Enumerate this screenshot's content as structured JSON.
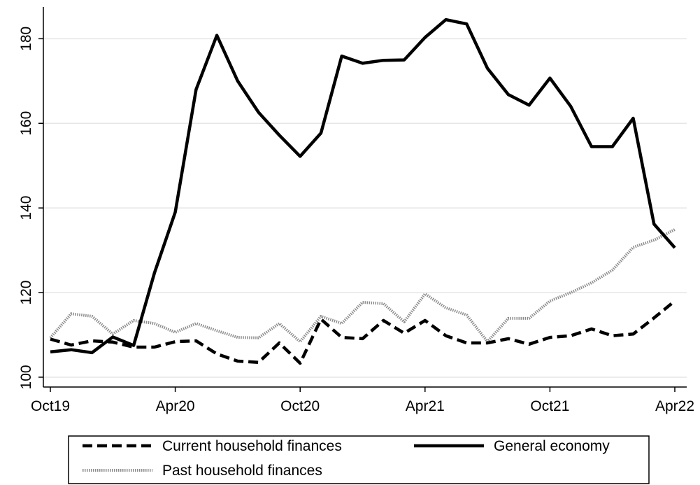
{
  "chart_data": {
    "type": "line",
    "categories": [
      "Oct19",
      null,
      null,
      null,
      null,
      null,
      "Apr20",
      null,
      null,
      null,
      null,
      null,
      "Oct20",
      null,
      null,
      null,
      null,
      null,
      "Apr21",
      null,
      null,
      null,
      null,
      null,
      "Oct21",
      null,
      null,
      null,
      null,
      null,
      "Apr22"
    ],
    "series": [
      {
        "name": "Current household finances",
        "color": "#000000",
        "dash": "dashed",
        "values": [
          109,
          107.6,
          108.6,
          108.3,
          107.1,
          107.1,
          108.4,
          108.6,
          105.5,
          103.8,
          103.5,
          108.1,
          103.3,
          113.7,
          109.4,
          109.1,
          113.4,
          110.4,
          113.4,
          109.8,
          108.1,
          108.1,
          109.1,
          107.8,
          109.4,
          109.8,
          111.4,
          109.8,
          110.2,
          114,
          118
        ]
      },
      {
        "name": "General economy",
        "color": "#000000",
        "dash": "solid",
        "values": [
          106,
          106.5,
          105.8,
          109.5,
          107.5,
          124.6,
          139,
          168,
          180.8,
          170,
          162.6,
          157.2,
          152.2,
          157.7,
          175.9,
          174.2,
          174.9,
          175,
          180.3,
          184.5,
          183.5,
          173,
          166.8,
          164.3,
          170.7,
          164,
          154.5,
          154.5,
          161.2,
          136.2,
          130.6
        ]
      },
      {
        "name": "Past household finances",
        "color": "#8c8c8c",
        "dash": "dotted",
        "values": [
          109.3,
          115,
          114.4,
          110.2,
          113.4,
          112.7,
          110.6,
          112.7,
          111,
          109.4,
          109.3,
          112.7,
          108.4,
          114.4,
          112.7,
          117.7,
          117.4,
          113.1,
          119.7,
          116.4,
          114.7,
          108.4,
          113.9,
          113.9,
          118,
          120,
          122.3,
          125.3,
          130.7,
          132.4,
          134.9
        ]
      }
    ],
    "ylim": [
      99,
      187.5
    ],
    "yticks": [
      100,
      120,
      140,
      160,
      180
    ],
    "grid": true
  }
}
